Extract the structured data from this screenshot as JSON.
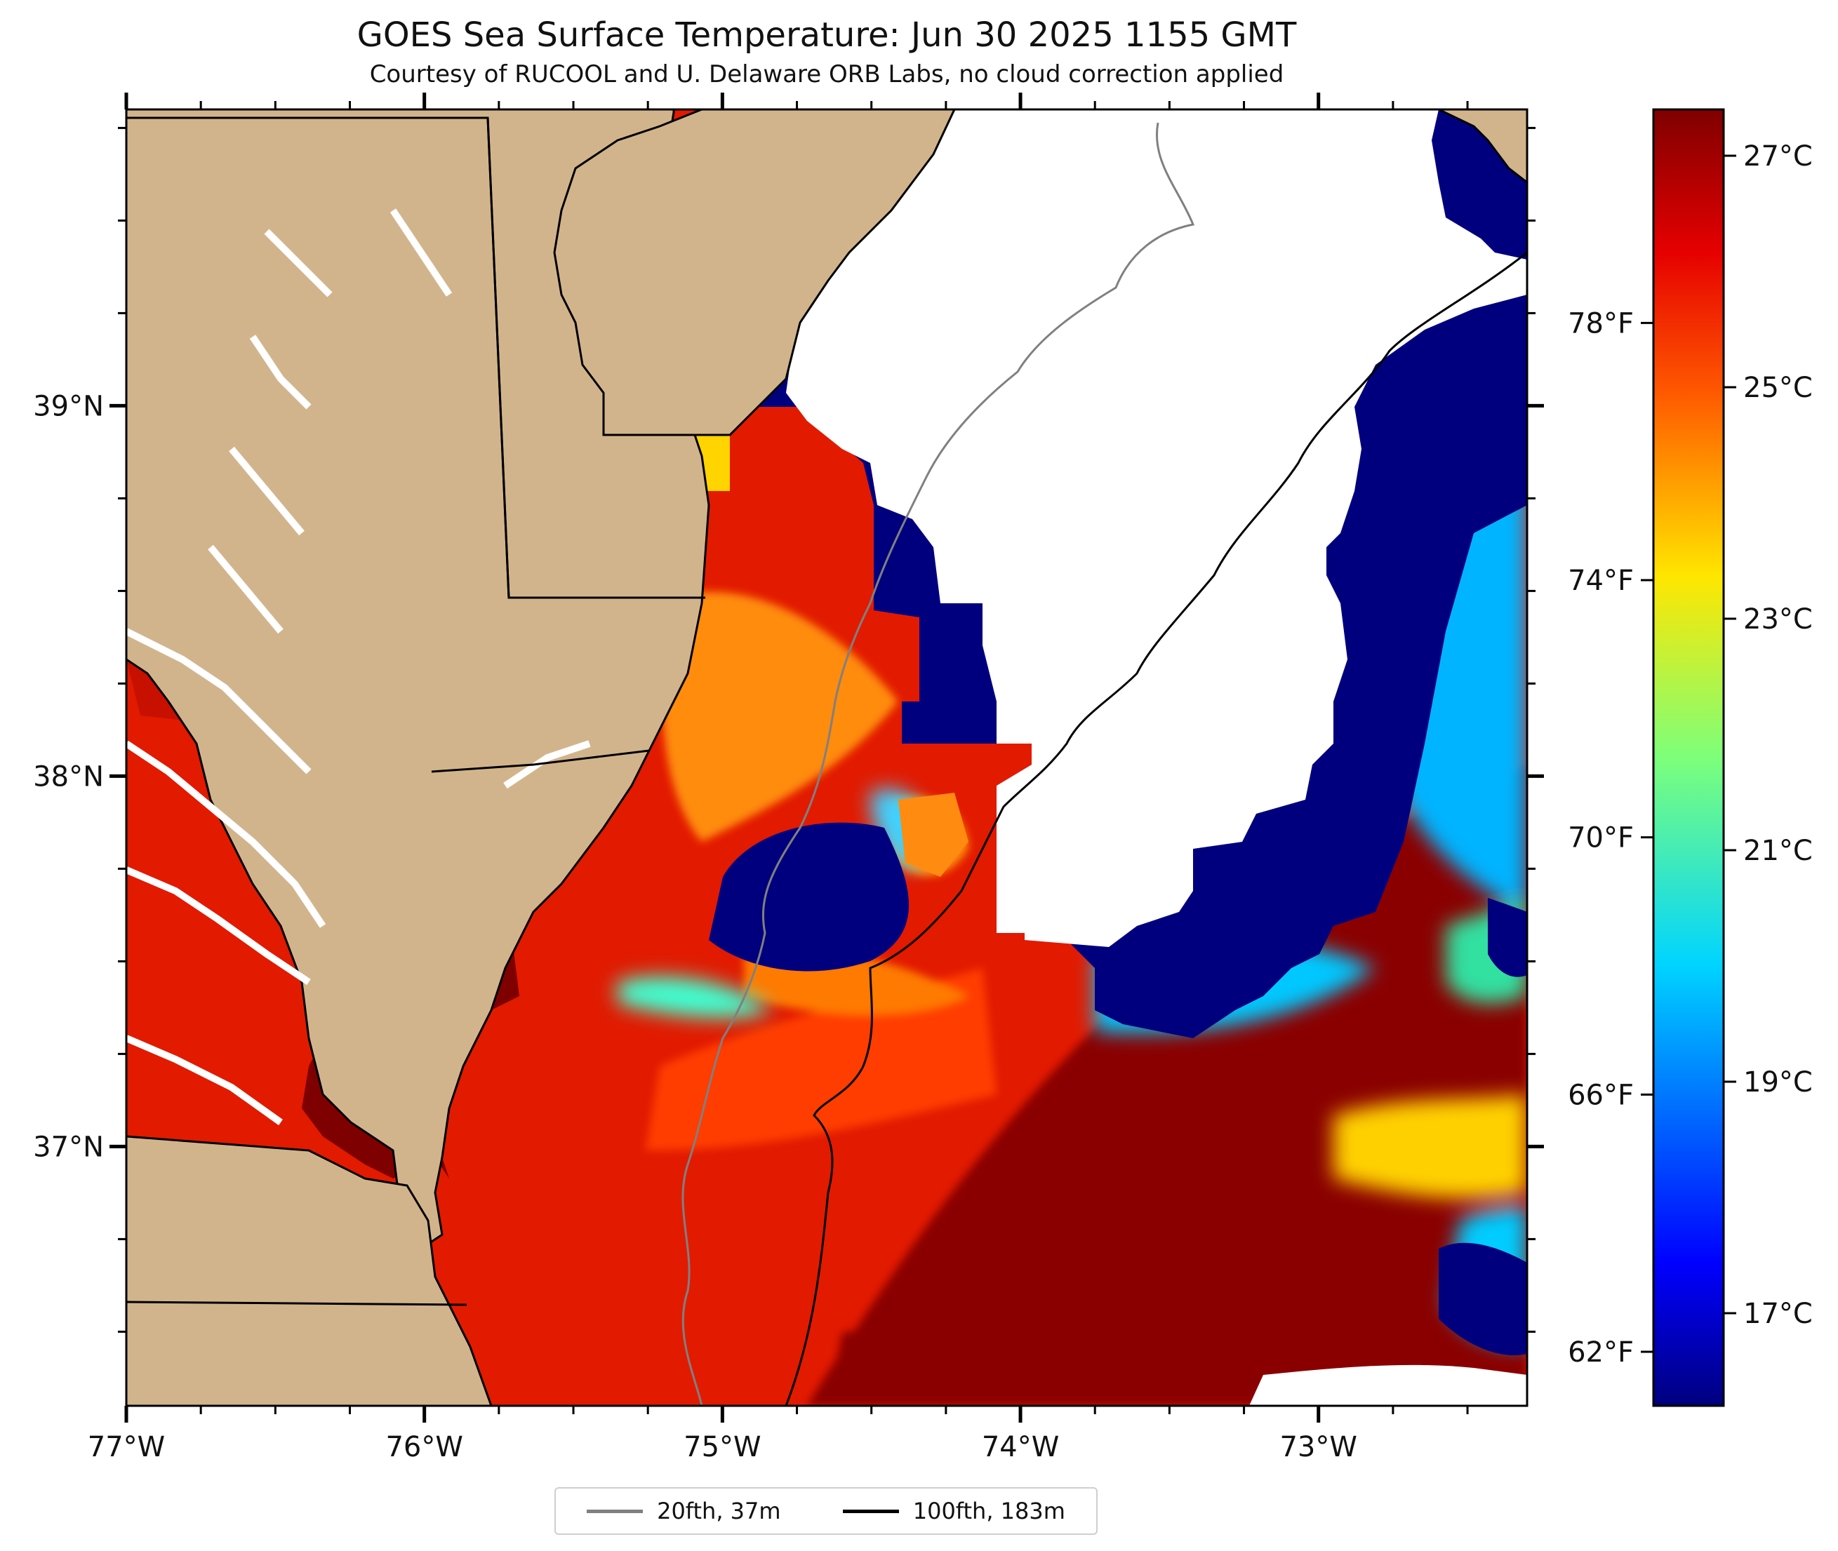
{
  "title": "GOES Sea Surface Temperature: Jun 30 2025 1155 GMT",
  "subtitle": "Courtesy of RUCOOL and U. Delaware ORB Labs, no cloud correction applied",
  "map": {
    "lon_range": [
      -77.0,
      -72.3
    ],
    "lat_range": [
      36.3,
      39.8
    ],
    "lon_ticks": [
      {
        "value": -77,
        "label": "77°W"
      },
      {
        "value": -76,
        "label": "76°W"
      },
      {
        "value": -75,
        "label": "75°W"
      },
      {
        "value": -74,
        "label": "74°W"
      },
      {
        "value": -73,
        "label": "73°W"
      }
    ],
    "lat_ticks": [
      {
        "value": 39,
        "label": "39°N"
      },
      {
        "value": 38,
        "label": "38°N"
      },
      {
        "value": 37,
        "label": "37°N"
      }
    ],
    "land_color": "#d2b48c",
    "cloud_color": "#ffffff",
    "colormap": "jet"
  },
  "colorbar": {
    "min_c": 16.2,
    "max_c": 27.4,
    "celsius_ticks": [
      {
        "value": 17,
        "label": "17°C"
      },
      {
        "value": 19,
        "label": "19°C"
      },
      {
        "value": 21,
        "label": "21°C"
      },
      {
        "value": 23,
        "label": "23°C"
      },
      {
        "value": 25,
        "label": "25°C"
      },
      {
        "value": 27,
        "label": "27°C"
      }
    ],
    "fahrenheit_ticks": [
      {
        "value": 62,
        "label": "62°F"
      },
      {
        "value": 66,
        "label": "66°F"
      },
      {
        "value": 70,
        "label": "70°F"
      },
      {
        "value": 74,
        "label": "74°F"
      },
      {
        "value": 78,
        "label": "78°F"
      }
    ]
  },
  "legend": [
    {
      "label": "20fth, 37m",
      "color": "#808080"
    },
    {
      "label": "100fth, 183m",
      "color": "#000000"
    }
  ]
}
